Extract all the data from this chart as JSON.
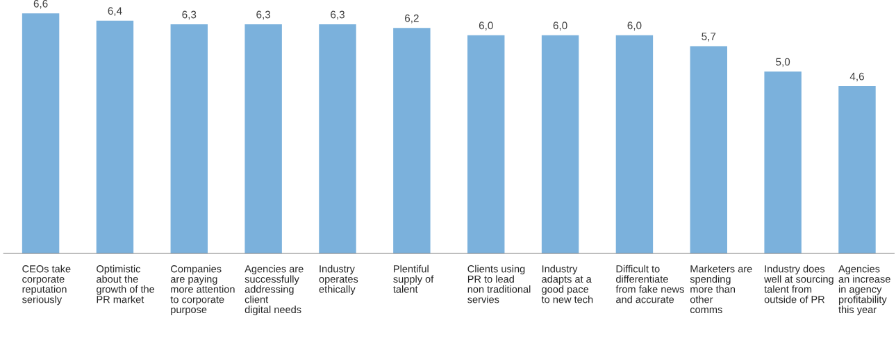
{
  "chart_data": {
    "type": "bar",
    "categories": [
      "CEOs take\ncorporate\nreputation\nseriously",
      "Optimistic\nabout the\ngrowth of the\nPR market",
      "Companies\nare paying\nmore attention\nto corporate\npurpose",
      "Agencies are\nsuccessfully\naddressing\nclient\ndigital needs",
      "Industry\noperates\nethically",
      "Plentiful\nsupply of\ntalent",
      "Clients using\nPR to lead\nnon traditional\nservies",
      "Industry\nadapts at a\ngood pace\nto new tech",
      "Difficult to\ndifferentiate\nfrom fake news\nand accurate",
      "Marketers are\nspending\nmore than\nother\ncomms",
      "Industry does\nwell at sourcing\ntalent from\noutside of PR",
      "Agencies\nan increase\nin agency\nprofitability\nthis year"
    ],
    "values": [
      6.6,
      6.4,
      6.3,
      6.3,
      6.3,
      6.2,
      6.0,
      6.0,
      6.0,
      5.7,
      5.0,
      4.6
    ],
    "value_labels": [
      "6,6",
      "6,4",
      "6,3",
      "6,3",
      "6,3",
      "6,2",
      "6,0",
      "6,0",
      "6,0",
      "5,7",
      "5,0",
      "4,6"
    ],
    "color": "#7bb1dc",
    "tick_labels": "x",
    "grid": false,
    "legend": false
  }
}
